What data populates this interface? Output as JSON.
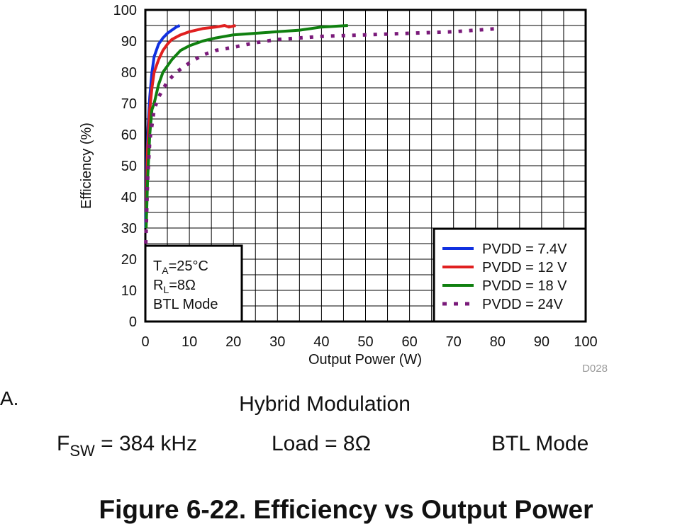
{
  "chart_data": {
    "type": "line",
    "xlabel": "Output Power (W)",
    "ylabel": "Efficiency (%)",
    "xlim": [
      0,
      100
    ],
    "ylim": [
      0,
      100
    ],
    "xticks": [
      0,
      10,
      20,
      30,
      40,
      50,
      60,
      70,
      80,
      90,
      100
    ],
    "yticks": [
      0,
      10,
      20,
      30,
      40,
      50,
      60,
      70,
      80,
      90,
      100
    ],
    "grid": true,
    "legend": "lower right",
    "series": [
      {
        "name": "PVDD = 7.4V",
        "color": "#1030e0",
        "style": "solid",
        "x": [
          0.1,
          0.3,
          0.6,
          1,
          1.5,
          2,
          3,
          4,
          5,
          6,
          7,
          7.8
        ],
        "values": [
          30,
          50,
          62,
          72,
          80,
          85,
          89,
          91,
          92.5,
          93.5,
          94.5,
          95
        ]
      },
      {
        "name": "PVDD = 12 V",
        "color": "#e02020",
        "style": "solid",
        "x": [
          0.2,
          0.5,
          1,
          1.5,
          2,
          3,
          4,
          5,
          6,
          8,
          10,
          13,
          16,
          18,
          19,
          20.5
        ],
        "values": [
          35,
          55,
          68,
          75,
          80,
          84,
          87,
          89,
          90.5,
          92,
          93,
          94,
          94.5,
          95,
          94.5,
          95
        ]
      },
      {
        "name": "PVDD = 18 V",
        "color": "#108010",
        "style": "solid",
        "x": [
          0.2,
          0.5,
          1,
          1.5,
          2,
          3,
          4,
          6,
          8,
          10,
          13,
          16,
          20,
          25,
          30,
          35,
          40,
          46
        ],
        "values": [
          30,
          45,
          60,
          68,
          70,
          76,
          80,
          84,
          87,
          88.5,
          90,
          91,
          92,
          92.5,
          93,
          93.5,
          94.5,
          95
        ]
      },
      {
        "name": "PVDD = 24V",
        "color": "#7a1a7a",
        "style": "dotted",
        "x": [
          0.1,
          0.5,
          1,
          2,
          3,
          5,
          7,
          10,
          13,
          16,
          20,
          25,
          30,
          40,
          50,
          60,
          70,
          80
        ],
        "values": [
          25,
          45,
          58,
          68,
          72,
          77,
          80,
          83,
          85.5,
          87,
          88,
          89.5,
          90.5,
          91.5,
          92,
          92.5,
          93,
          94
        ]
      }
    ],
    "conditions": [
      [
        "T",
        "A",
        "=25°C"
      ],
      [
        "R",
        "L",
        "=8Ω"
      ],
      [
        "BTL Mode"
      ]
    ],
    "figure_id": "D028"
  },
  "panel_label": "A.",
  "caption": {
    "modulation": "Hybrid Modulation",
    "fsw": [
      "F",
      "SW",
      " = 384 kHz"
    ],
    "load": "Load = 8Ω",
    "mode": "BTL Mode"
  },
  "figure_title": "Figure 6-22. Efficiency vs Output Power"
}
